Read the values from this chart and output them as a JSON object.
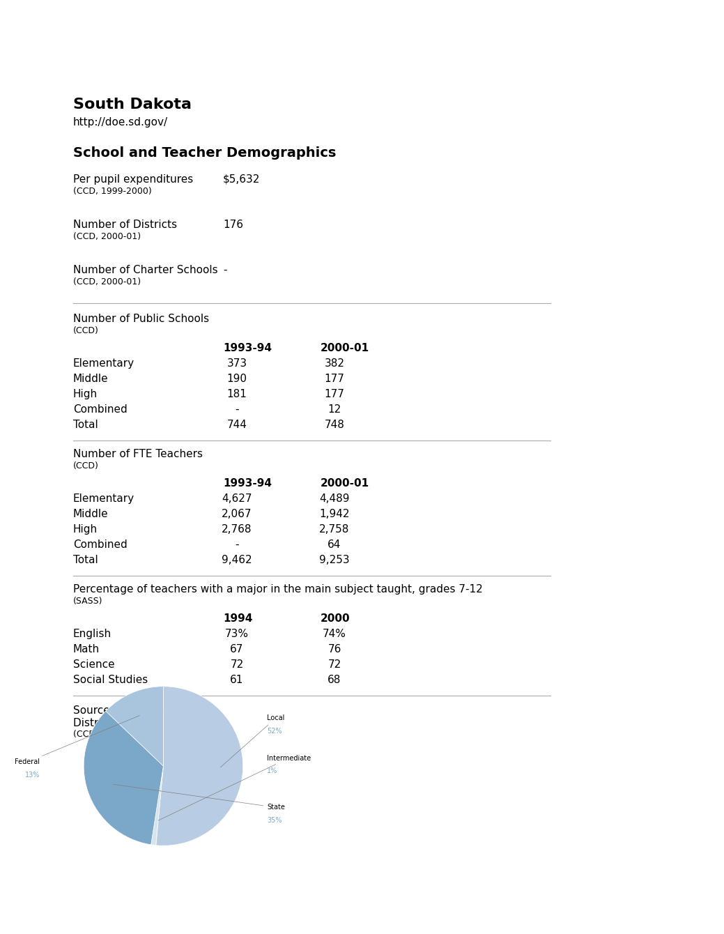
{
  "title": "South Dakota",
  "url": "http://doe.sd.gov/",
  "section_title": "School and Teacher Demographics",
  "simple_stats": [
    {
      "label": "Per pupil expenditures",
      "sublabel": "(CCD, 1999-2000)",
      "value": "$5,632"
    },
    {
      "label": "Number of Districts",
      "sublabel": "(CCD, 2000-01)",
      "value": "176"
    },
    {
      "label": "Number of Charter Schools",
      "sublabel": "(CCD, 2000-01)",
      "value": "-"
    }
  ],
  "public_schools": {
    "title": "Number of Public Schools",
    "subtitle": "(CCD)",
    "col1": "1993-94",
    "col2": "2000-01",
    "rows": [
      {
        "label": "Elementary",
        "v1": "373",
        "v2": "382"
      },
      {
        "label": "Middle",
        "v1": "190",
        "v2": "177"
      },
      {
        "label": "High",
        "v1": "181",
        "v2": "177"
      },
      {
        "label": "Combined",
        "v1": "-",
        "v2": "12"
      },
      {
        "label": "Total",
        "v1": "744",
        "v2": "748"
      }
    ]
  },
  "fte_teachers": {
    "title": "Number of FTE Teachers",
    "subtitle": "(CCD)",
    "col1": "1993-94",
    "col2": "2000-01",
    "rows": [
      {
        "label": "Elementary",
        "v1": "4,627",
        "v2": "4,489"
      },
      {
        "label": "Middle",
        "v1": "2,067",
        "v2": "1,942"
      },
      {
        "label": "High",
        "v1": "2,768",
        "v2": "2,758"
      },
      {
        "label": "Combined",
        "v1": "-",
        "v2": "64"
      },
      {
        "label": "Total",
        "v1": "9,462",
        "v2": "9,253"
      }
    ]
  },
  "teacher_pct": {
    "title": "Percentage of teachers with a major in the main subject taught, grades 7-12",
    "subtitle": "(SASS)",
    "col1": "1994",
    "col2": "2000",
    "rows": [
      {
        "label": "English",
        "v1": "73%",
        "v2": "74%"
      },
      {
        "label": "Math",
        "v1": "67",
        "v2": "76"
      },
      {
        "label": "Science",
        "v1": "72",
        "v2": "72"
      },
      {
        "label": "Social Studies",
        "v1": "61",
        "v2": "68"
      }
    ]
  },
  "funding_title": "Sources of Funding",
  "funding_subtitle": "District Average",
  "funding_subsub": "(CCD, 1999-2000)",
  "pie_slices": [
    52,
    1,
    35,
    13
  ],
  "pie_labels": [
    "Local",
    "Intermediate",
    "State",
    "Federal"
  ],
  "pie_pct_labels": [
    "52%",
    "1%",
    "35%",
    "13%"
  ],
  "pie_colors": [
    "#b8cce4",
    "#d6e4f0",
    "#7ba7c9",
    "#a9c4dd"
  ],
  "bg_color": "#ffffff",
  "text_color": "#000000",
  "label_color_pct": "#7ba7c9"
}
